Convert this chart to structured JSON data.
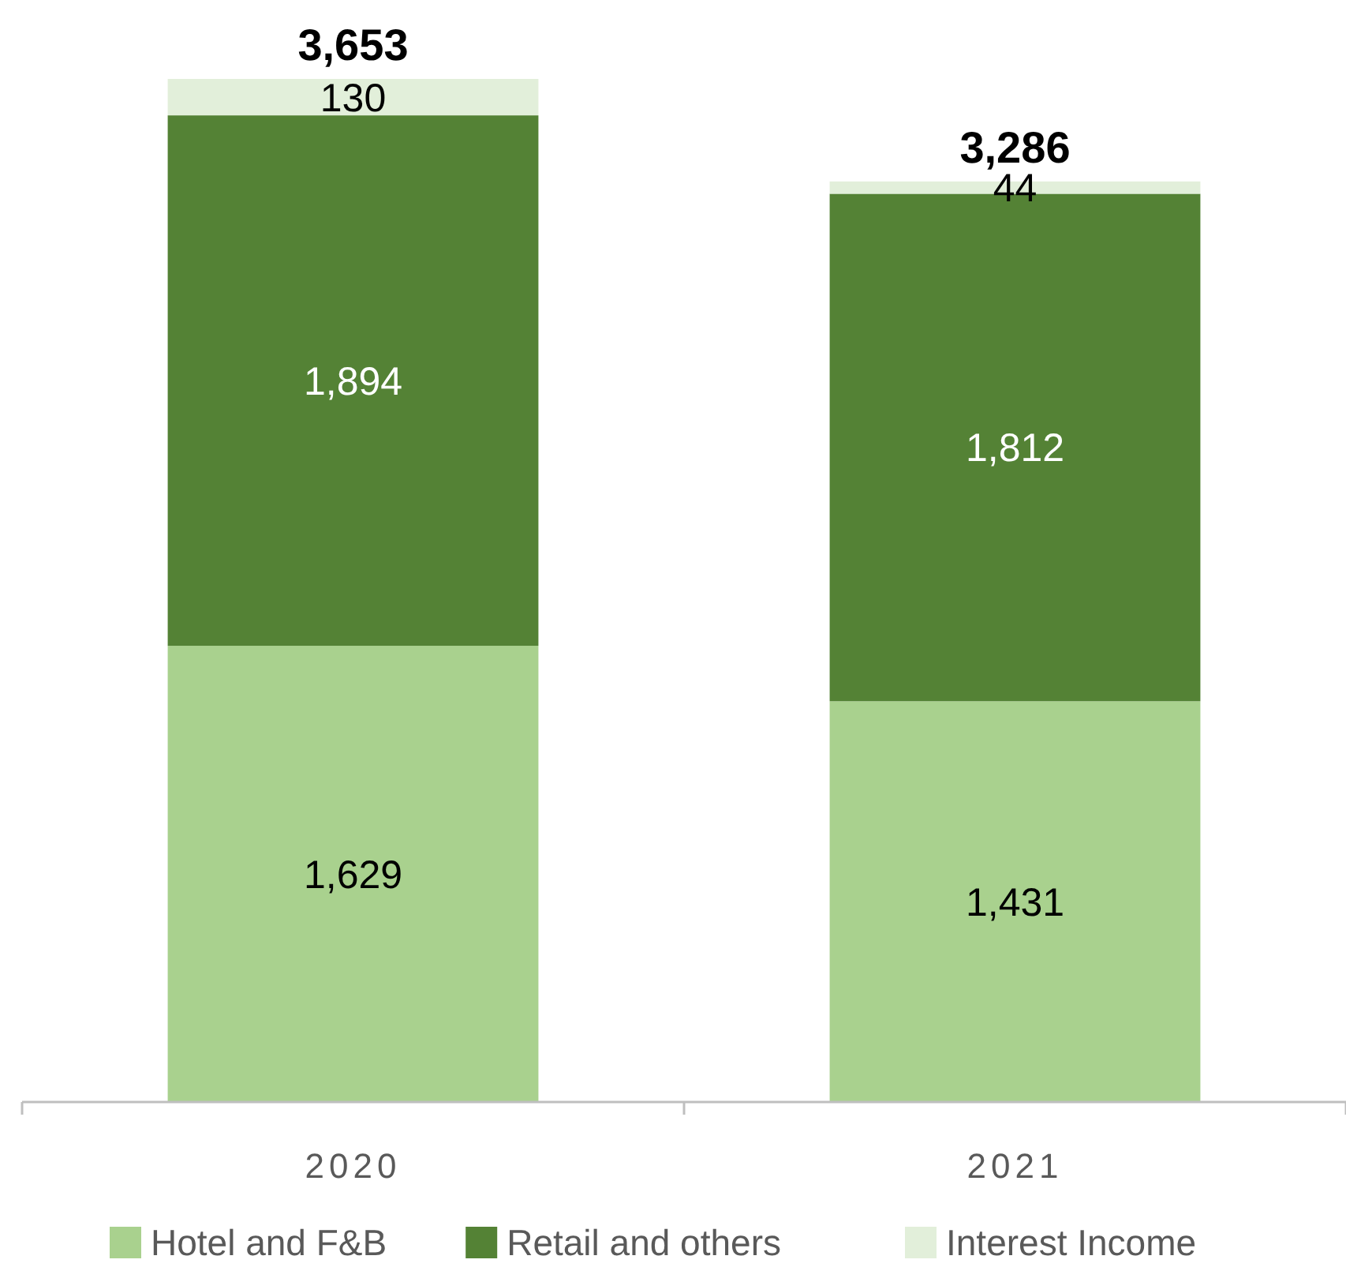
{
  "chart_data": {
    "type": "bar",
    "stacked": true,
    "categories": [
      "2020",
      "2021"
    ],
    "series": [
      {
        "name": "Hotel and F&B",
        "color": "#a9d18e",
        "values": [
          1629,
          1431
        ],
        "value_labels": [
          "1,629",
          "1,431"
        ]
      },
      {
        "name": "Retail and others",
        "color": "#548235",
        "values": [
          1894,
          1812
        ],
        "value_labels": [
          "1,894",
          "1,812"
        ]
      },
      {
        "name": "Interest Income",
        "color": "#e2efda",
        "values": [
          130,
          44
        ],
        "value_labels": [
          "130",
          "44"
        ]
      }
    ],
    "totals": [
      "3,653",
      "3,286"
    ],
    "legend": "bottom"
  }
}
